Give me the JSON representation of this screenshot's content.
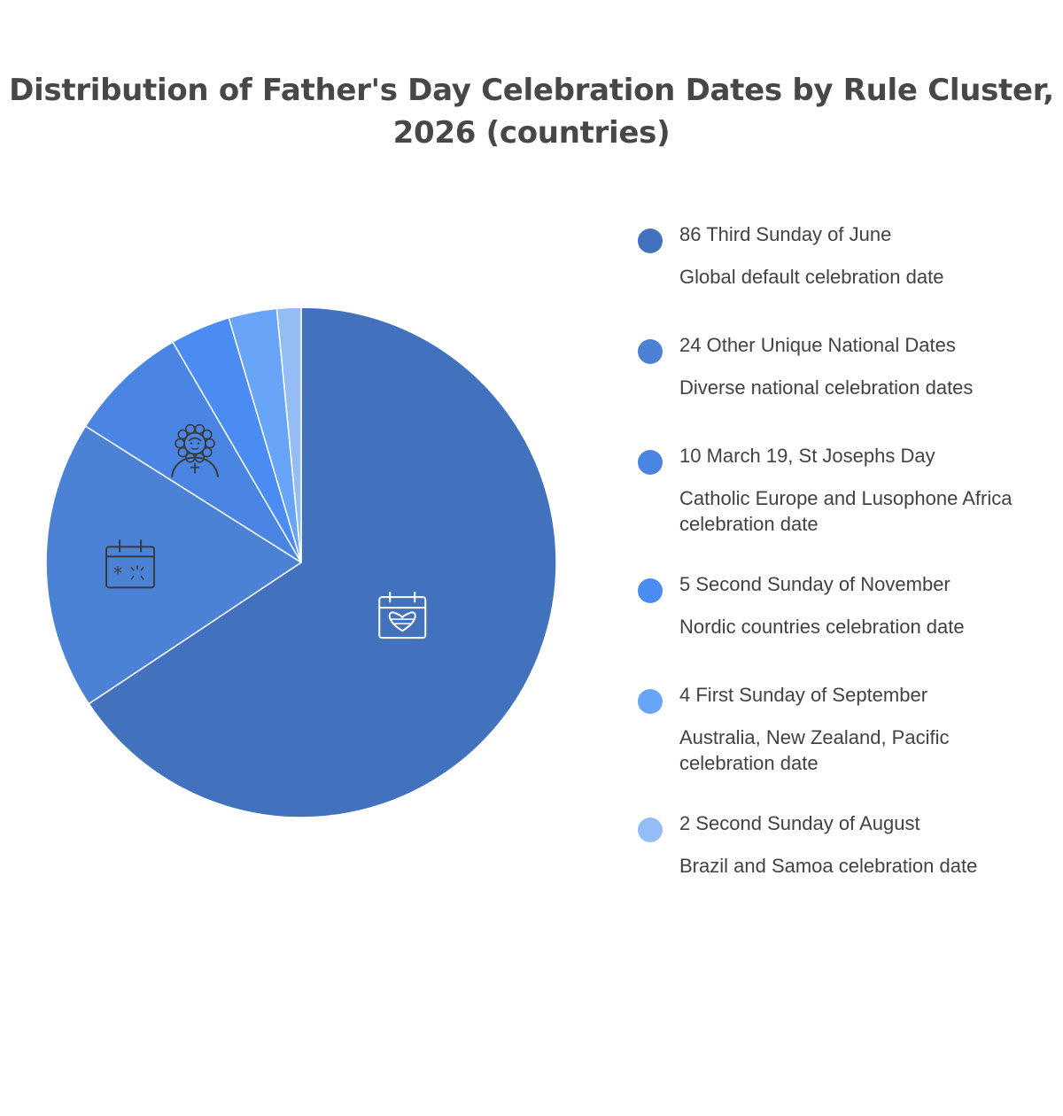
{
  "chart_data": {
    "type": "pie",
    "title": "Distribution of Father's Day Celebration Dates by Rule Cluster, 2026 (countries)",
    "legend_position": "right",
    "slices": [
      {
        "value": 86,
        "label": "Third Sunday of June",
        "description": "Global default celebration date",
        "color": "#4271bd",
        "icon": "calendar-heart-icon"
      },
      {
        "value": 24,
        "label": "Other Unique National Dates",
        "description": "Diverse national celebration dates",
        "color": "#4b82d6",
        "icon": "calendar-sparkle-icon"
      },
      {
        "value": 10,
        "label": "March 19, St Josephs Day",
        "description": "Catholic Europe and Lusophone Africa celebration date",
        "color": "#4a85e3",
        "icon": "saint-figure-icon"
      },
      {
        "value": 5,
        "label": "Second Sunday of November",
        "description": "Nordic countries celebration date",
        "color": "#4a8cf2",
        "icon": ""
      },
      {
        "value": 4,
        "label": "First Sunday of September",
        "description": "Australia, New Zealand, Pacific celebration date",
        "color": "#68a4f7",
        "icon": ""
      },
      {
        "value": 2,
        "label": "Second Sunday of August",
        "description": "Brazil and Samoa celebration date",
        "color": "#95bdf5",
        "icon": ""
      }
    ]
  }
}
